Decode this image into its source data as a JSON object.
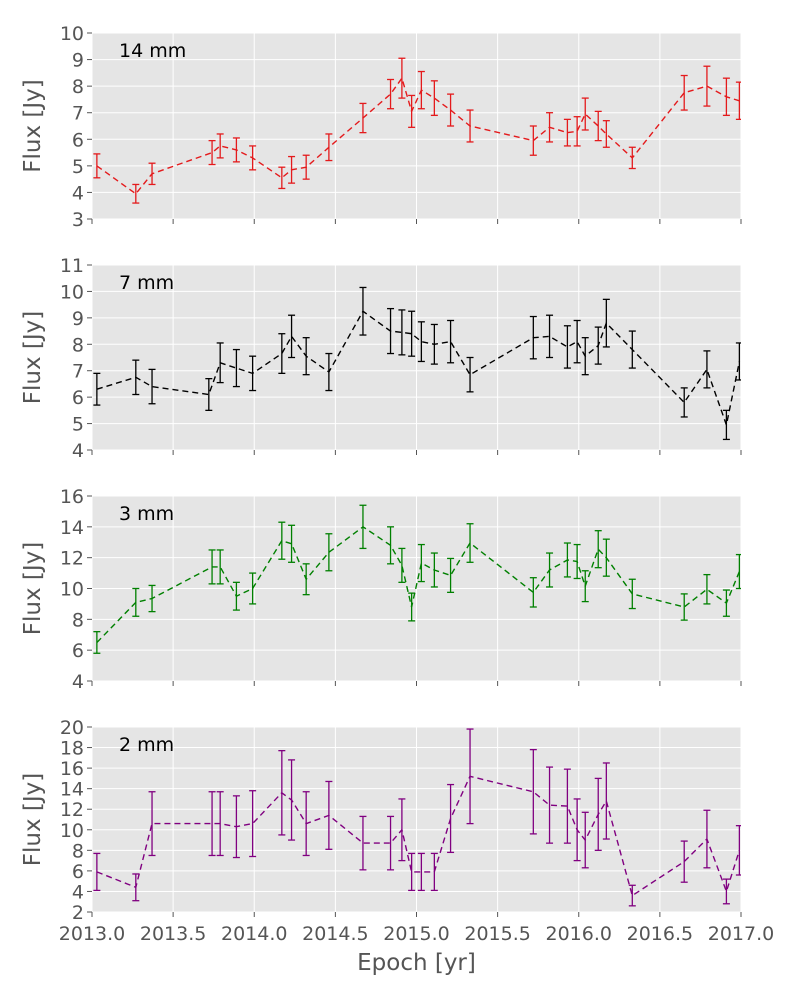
{
  "chart_data": {
    "type": "multi-panel-errorbar-line",
    "xlabel": "Epoch [yr]",
    "xlim": [
      2013.0,
      2017.0
    ],
    "xticks": [
      "2013.0",
      "2013.5",
      "2014.0",
      "2014.5",
      "2015.0",
      "2015.5",
      "2016.0",
      "2016.5",
      "2017.0"
    ],
    "panels": [
      {
        "id": "14mm",
        "label": "14 mm",
        "ylabel": "Flux [Jy]",
        "ylim": [
          3,
          10
        ],
        "yticks": [
          "3",
          "4",
          "5",
          "6",
          "7",
          "8",
          "9",
          "10"
        ],
        "color": "#e41a1c",
        "points": [
          {
            "x": 2013.03,
            "y": 5.0,
            "err": 0.45
          },
          {
            "x": 2013.27,
            "y": 3.95,
            "err": 0.35
          },
          {
            "x": 2013.37,
            "y": 4.7,
            "err": 0.4
          },
          {
            "x": 2013.74,
            "y": 5.5,
            "err": 0.45
          },
          {
            "x": 2013.79,
            "y": 5.75,
            "err": 0.45
          },
          {
            "x": 2013.89,
            "y": 5.6,
            "err": 0.45
          },
          {
            "x": 2013.99,
            "y": 5.3,
            "err": 0.45
          },
          {
            "x": 2014.17,
            "y": 4.55,
            "err": 0.4
          },
          {
            "x": 2014.23,
            "y": 4.85,
            "err": 0.5
          },
          {
            "x": 2014.32,
            "y": 4.95,
            "err": 0.45
          },
          {
            "x": 2014.46,
            "y": 5.7,
            "err": 0.5
          },
          {
            "x": 2014.67,
            "y": 6.8,
            "err": 0.55
          },
          {
            "x": 2014.84,
            "y": 7.7,
            "err": 0.55
          },
          {
            "x": 2014.91,
            "y": 8.3,
            "err": 0.75
          },
          {
            "x": 2014.97,
            "y": 7.05,
            "err": 0.6
          },
          {
            "x": 2015.03,
            "y": 7.85,
            "err": 0.7
          },
          {
            "x": 2015.11,
            "y": 7.55,
            "err": 0.65
          },
          {
            "x": 2015.21,
            "y": 7.1,
            "err": 0.6
          },
          {
            "x": 2015.33,
            "y": 6.5,
            "err": 0.6
          },
          {
            "x": 2015.72,
            "y": 5.95,
            "err": 0.55
          },
          {
            "x": 2015.82,
            "y": 6.45,
            "err": 0.55
          },
          {
            "x": 2015.93,
            "y": 6.25,
            "err": 0.5
          },
          {
            "x": 2015.99,
            "y": 6.3,
            "err": 0.55
          },
          {
            "x": 2016.04,
            "y": 6.95,
            "err": 0.6
          },
          {
            "x": 2016.12,
            "y": 6.5,
            "err": 0.55
          },
          {
            "x": 2016.17,
            "y": 6.2,
            "err": 0.5
          },
          {
            "x": 2016.33,
            "y": 5.3,
            "err": 0.4
          },
          {
            "x": 2016.65,
            "y": 7.75,
            "err": 0.65
          },
          {
            "x": 2016.79,
            "y": 8.0,
            "err": 0.75
          },
          {
            "x": 2016.91,
            "y": 7.6,
            "err": 0.7
          },
          {
            "x": 2016.99,
            "y": 7.45,
            "err": 0.7
          }
        ]
      },
      {
        "id": "7mm",
        "label": "7 mm",
        "ylabel": "Flux [Jy]",
        "ylim": [
          4,
          11
        ],
        "yticks": [
          "4",
          "5",
          "6",
          "7",
          "8",
          "9",
          "10",
          "11"
        ],
        "color": "#000000",
        "points": [
          {
            "x": 2013.03,
            "y": 6.3,
            "err": 0.6
          },
          {
            "x": 2013.27,
            "y": 6.75,
            "err": 0.65
          },
          {
            "x": 2013.37,
            "y": 6.4,
            "err": 0.65
          },
          {
            "x": 2013.72,
            "y": 6.1,
            "err": 0.6
          },
          {
            "x": 2013.79,
            "y": 7.3,
            "err": 0.75
          },
          {
            "x": 2013.89,
            "y": 7.1,
            "err": 0.7
          },
          {
            "x": 2013.99,
            "y": 6.9,
            "err": 0.65
          },
          {
            "x": 2014.17,
            "y": 7.65,
            "err": 0.75
          },
          {
            "x": 2014.23,
            "y": 8.3,
            "err": 0.8
          },
          {
            "x": 2014.32,
            "y": 7.55,
            "err": 0.7
          },
          {
            "x": 2014.46,
            "y": 6.95,
            "err": 0.7
          },
          {
            "x": 2014.67,
            "y": 9.25,
            "err": 0.9
          },
          {
            "x": 2014.84,
            "y": 8.5,
            "err": 0.85
          },
          {
            "x": 2014.91,
            "y": 8.45,
            "err": 0.85
          },
          {
            "x": 2014.97,
            "y": 8.4,
            "err": 0.85
          },
          {
            "x": 2015.03,
            "y": 8.1,
            "err": 0.75
          },
          {
            "x": 2015.11,
            "y": 8.0,
            "err": 0.75
          },
          {
            "x": 2015.21,
            "y": 8.1,
            "err": 0.8
          },
          {
            "x": 2015.33,
            "y": 6.85,
            "err": 0.65
          },
          {
            "x": 2015.72,
            "y": 8.25,
            "err": 0.8
          },
          {
            "x": 2015.82,
            "y": 8.3,
            "err": 0.8
          },
          {
            "x": 2015.93,
            "y": 7.9,
            "err": 0.8
          },
          {
            "x": 2015.99,
            "y": 8.1,
            "err": 0.8
          },
          {
            "x": 2016.04,
            "y": 7.55,
            "err": 0.7
          },
          {
            "x": 2016.12,
            "y": 7.95,
            "err": 0.7
          },
          {
            "x": 2016.17,
            "y": 8.8,
            "err": 0.9
          },
          {
            "x": 2016.33,
            "y": 7.8,
            "err": 0.7
          },
          {
            "x": 2016.65,
            "y": 5.8,
            "err": 0.55
          },
          {
            "x": 2016.79,
            "y": 7.05,
            "err": 0.7
          },
          {
            "x": 2016.91,
            "y": 4.95,
            "err": 0.55
          },
          {
            "x": 2016.99,
            "y": 7.35,
            "err": 0.7
          }
        ]
      },
      {
        "id": "3mm",
        "label": "3 mm",
        "ylabel": "Flux [Jy]",
        "ylim": [
          4,
          16
        ],
        "yticks": [
          "4",
          "6",
          "8",
          "10",
          "12",
          "14",
          "16"
        ],
        "color": "#008000",
        "points": [
          {
            "x": 2013.03,
            "y": 6.5,
            "err": 0.7
          },
          {
            "x": 2013.27,
            "y": 9.1,
            "err": 0.9
          },
          {
            "x": 2013.37,
            "y": 9.35,
            "err": 0.85
          },
          {
            "x": 2013.74,
            "y": 11.4,
            "err": 1.1
          },
          {
            "x": 2013.79,
            "y": 11.4,
            "err": 1.1
          },
          {
            "x": 2013.89,
            "y": 9.5,
            "err": 0.9
          },
          {
            "x": 2013.99,
            "y": 10.0,
            "err": 1.0
          },
          {
            "x": 2014.17,
            "y": 13.1,
            "err": 1.2
          },
          {
            "x": 2014.23,
            "y": 12.9,
            "err": 1.2
          },
          {
            "x": 2014.32,
            "y": 10.6,
            "err": 1.0
          },
          {
            "x": 2014.46,
            "y": 12.35,
            "err": 1.2
          },
          {
            "x": 2014.67,
            "y": 14.0,
            "err": 1.4
          },
          {
            "x": 2014.84,
            "y": 12.8,
            "err": 1.2
          },
          {
            "x": 2014.91,
            "y": 11.5,
            "err": 1.1
          },
          {
            "x": 2014.97,
            "y": 8.8,
            "err": 0.9
          },
          {
            "x": 2015.03,
            "y": 11.65,
            "err": 1.2
          },
          {
            "x": 2015.11,
            "y": 11.2,
            "err": 1.1
          },
          {
            "x": 2015.21,
            "y": 10.85,
            "err": 1.1
          },
          {
            "x": 2015.33,
            "y": 12.95,
            "err": 1.25
          },
          {
            "x": 2015.72,
            "y": 9.75,
            "err": 0.95
          },
          {
            "x": 2015.82,
            "y": 11.2,
            "err": 1.1
          },
          {
            "x": 2015.93,
            "y": 11.85,
            "err": 1.1
          },
          {
            "x": 2015.99,
            "y": 11.75,
            "err": 1.1
          },
          {
            "x": 2016.04,
            "y": 10.15,
            "err": 1.0
          },
          {
            "x": 2016.12,
            "y": 12.55,
            "err": 1.2
          },
          {
            "x": 2016.17,
            "y": 12.0,
            "err": 1.2
          },
          {
            "x": 2016.33,
            "y": 9.65,
            "err": 0.95
          },
          {
            "x": 2016.65,
            "y": 8.8,
            "err": 0.85
          },
          {
            "x": 2016.79,
            "y": 9.95,
            "err": 0.95
          },
          {
            "x": 2016.91,
            "y": 9.05,
            "err": 0.85
          },
          {
            "x": 2016.99,
            "y": 11.1,
            "err": 1.1
          }
        ]
      },
      {
        "id": "2mm",
        "label": "2 mm",
        "ylabel": "Flux [Jy]",
        "ylim": [
          2,
          20
        ],
        "yticks": [
          "2",
          "4",
          "6",
          "8",
          "10",
          "12",
          "14",
          "16",
          "18",
          "20"
        ],
        "color": "#800080",
        "points": [
          {
            "x": 2013.03,
            "y": 5.9,
            "err": 1.8
          },
          {
            "x": 2013.27,
            "y": 4.4,
            "err": 1.3
          },
          {
            "x": 2013.37,
            "y": 10.6,
            "err": 3.1
          },
          {
            "x": 2013.74,
            "y": 10.6,
            "err": 3.1
          },
          {
            "x": 2013.79,
            "y": 10.6,
            "err": 3.1
          },
          {
            "x": 2013.89,
            "y": 10.3,
            "err": 3.0
          },
          {
            "x": 2013.99,
            "y": 10.6,
            "err": 3.2
          },
          {
            "x": 2014.17,
            "y": 13.6,
            "err": 4.1
          },
          {
            "x": 2014.23,
            "y": 12.9,
            "err": 3.9
          },
          {
            "x": 2014.32,
            "y": 10.6,
            "err": 3.1
          },
          {
            "x": 2014.46,
            "y": 11.4,
            "err": 3.3
          },
          {
            "x": 2014.67,
            "y": 8.7,
            "err": 2.6
          },
          {
            "x": 2014.84,
            "y": 8.7,
            "err": 2.6
          },
          {
            "x": 2014.91,
            "y": 10.0,
            "err": 3.0
          },
          {
            "x": 2014.97,
            "y": 5.9,
            "err": 1.8
          },
          {
            "x": 2015.03,
            "y": 5.9,
            "err": 1.8
          },
          {
            "x": 2015.11,
            "y": 5.9,
            "err": 1.8
          },
          {
            "x": 2015.21,
            "y": 11.1,
            "err": 3.3
          },
          {
            "x": 2015.33,
            "y": 15.2,
            "err": 4.6
          },
          {
            "x": 2015.72,
            "y": 13.7,
            "err": 4.1
          },
          {
            "x": 2015.82,
            "y": 12.4,
            "err": 3.7
          },
          {
            "x": 2015.93,
            "y": 12.3,
            "err": 3.6
          },
          {
            "x": 2015.99,
            "y": 10.0,
            "err": 3.0
          },
          {
            "x": 2016.04,
            "y": 9.0,
            "err": 2.7
          },
          {
            "x": 2016.12,
            "y": 11.5,
            "err": 3.5
          },
          {
            "x": 2016.17,
            "y": 12.8,
            "err": 3.7
          },
          {
            "x": 2016.33,
            "y": 3.6,
            "err": 1.0
          },
          {
            "x": 2016.65,
            "y": 6.9,
            "err": 2.0
          },
          {
            "x": 2016.79,
            "y": 9.1,
            "err": 2.8
          },
          {
            "x": 2016.91,
            "y": 4.0,
            "err": 1.2
          },
          {
            "x": 2016.99,
            "y": 8.0,
            "err": 2.4
          }
        ]
      }
    ]
  }
}
